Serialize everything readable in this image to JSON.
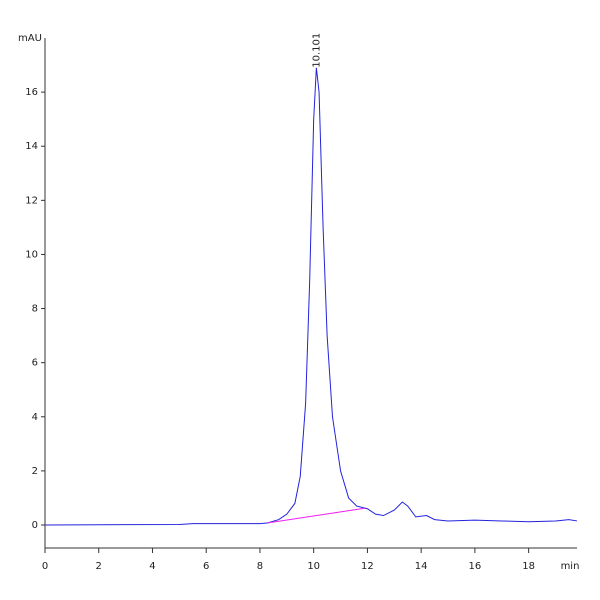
{
  "chart_data": {
    "type": "line",
    "ylabel": "mAU",
    "xlabel": "min",
    "xlim": [
      0,
      19.8
    ],
    "ylim": [
      -0.85,
      18
    ],
    "xticks": [
      0,
      2,
      4,
      6,
      8,
      10,
      12,
      14,
      16,
      18
    ],
    "yticks": [
      0,
      2,
      4,
      6,
      8,
      10,
      12,
      14,
      16
    ],
    "series": [
      {
        "color": "#2222dd",
        "x": [
          0,
          5,
          5.5,
          7,
          8,
          8.3,
          8.7,
          9,
          9.3,
          9.5,
          9.7,
          9.85,
          10,
          10.1,
          10.2,
          10.35,
          10.5,
          10.7,
          11,
          11.3,
          11.6,
          12,
          12.3,
          12.6,
          13,
          13.3,
          13.5,
          13.8,
          14.2,
          14.5,
          15,
          16,
          17,
          18,
          19,
          19.5,
          19.8
        ],
        "values": [
          0,
          0.02,
          0.05,
          0.05,
          0.05,
          0.08,
          0.2,
          0.4,
          0.8,
          1.8,
          4.5,
          9,
          15,
          16.9,
          16,
          11,
          7,
          4,
          2,
          1,
          0.7,
          0.6,
          0.4,
          0.35,
          0.55,
          0.85,
          0.7,
          0.3,
          0.35,
          0.2,
          0.15,
          0.18,
          0.15,
          0.12,
          0.15,
          0.2,
          0.15
        ]
      },
      {
        "color": "#ee22ee",
        "x": [
          8.3,
          11.9
        ],
        "values": [
          0.08,
          0.62
        ]
      }
    ],
    "annotations": [
      {
        "text": "10.101",
        "x": 10.101,
        "y": 16.9
      }
    ]
  }
}
